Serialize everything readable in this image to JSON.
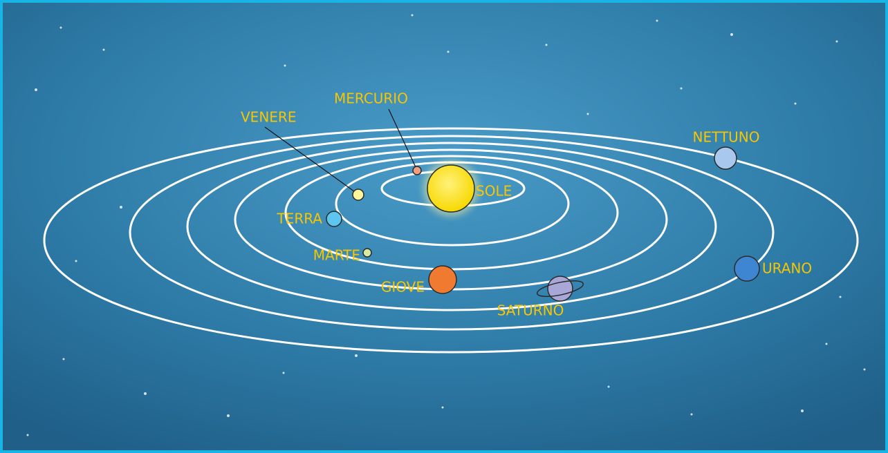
{
  "nodes": [
    {
      "label": "SOLE"
    },
    {
      "label": "MERCURIO"
    },
    {
      "label": "VENERE"
    },
    {
      "label": "TERRA"
    },
    {
      "label": "MARTE"
    },
    {
      "label": "GIOVE"
    },
    {
      "label": "SATURNO"
    },
    {
      "label": "URANO"
    },
    {
      "label": "NETTUNO"
    }
  ]
}
